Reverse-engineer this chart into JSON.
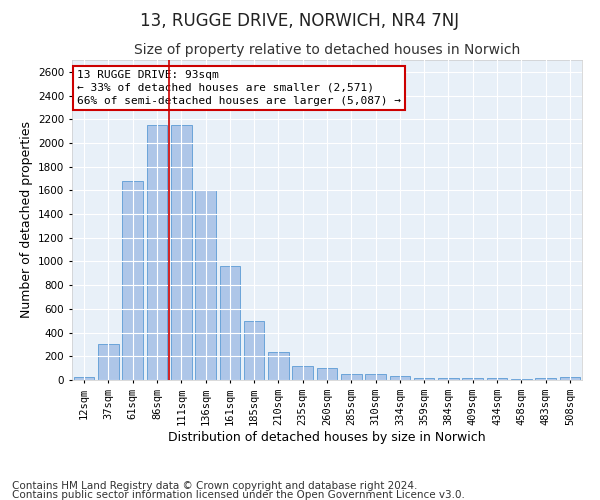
{
  "title": "13, RUGGE DRIVE, NORWICH, NR4 7NJ",
  "subtitle": "Size of property relative to detached houses in Norwich",
  "xlabel": "Distribution of detached houses by size in Norwich",
  "ylabel": "Number of detached properties",
  "footnote1": "Contains HM Land Registry data © Crown copyright and database right 2024.",
  "footnote2": "Contains public sector information licensed under the Open Government Licence v3.0.",
  "categories": [
    "12sqm",
    "37sqm",
    "61sqm",
    "86sqm",
    "111sqm",
    "136sqm",
    "161sqm",
    "185sqm",
    "210sqm",
    "235sqm",
    "260sqm",
    "285sqm",
    "310sqm",
    "334sqm",
    "359sqm",
    "384sqm",
    "409sqm",
    "434sqm",
    "458sqm",
    "483sqm",
    "508sqm"
  ],
  "values": [
    25,
    300,
    1675,
    2150,
    2150,
    1600,
    960,
    500,
    240,
    120,
    100,
    50,
    50,
    35,
    20,
    20,
    20,
    20,
    5,
    20,
    25
  ],
  "bar_color": "#aec6e8",
  "bar_edge_color": "#5b9bd5",
  "background_color": "#e8f0f8",
  "grid_color": "#ffffff",
  "ylim": [
    0,
    2700
  ],
  "yticks": [
    0,
    200,
    400,
    600,
    800,
    1000,
    1200,
    1400,
    1600,
    1800,
    2000,
    2200,
    2400,
    2600
  ],
  "vline_x": 3.5,
  "vline_color": "#cc0000",
  "annotation_line1": "13 RUGGE DRIVE: 93sqm",
  "annotation_line2": "← 33% of detached houses are smaller (2,571)",
  "annotation_line3": "66% of semi-detached houses are larger (5,087) →",
  "annotation_box_color": "#cc0000",
  "title_fontsize": 12,
  "subtitle_fontsize": 10,
  "axis_label_fontsize": 9,
  "tick_fontsize": 7.5,
  "annotation_fontsize": 8,
  "footnote_fontsize": 7.5
}
